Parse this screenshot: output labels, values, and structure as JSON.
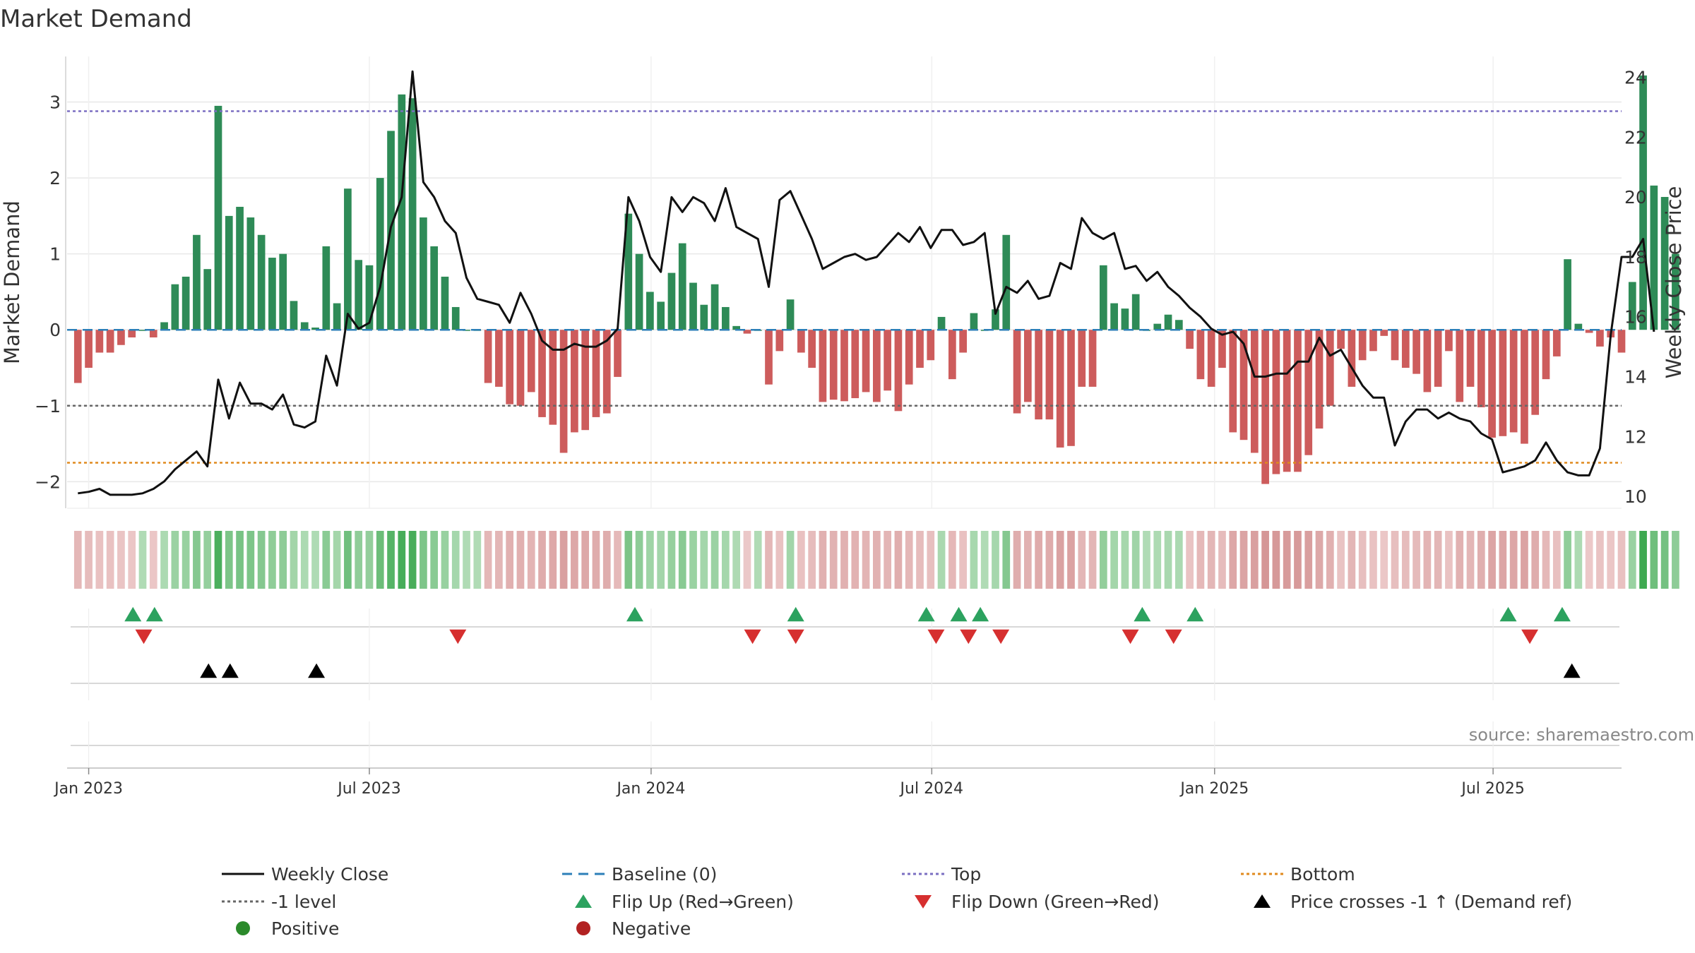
{
  "chart_data": {
    "type": "bar+line",
    "title": "Market Demand",
    "source": "source: sharemaestro.com",
    "left_axis": {
      "label": "Market Demand",
      "range": [
        -2.35,
        3.6
      ],
      "ticks": [
        -2,
        -1,
        0,
        1,
        2,
        3
      ],
      "tick_labels": [
        "−2",
        "−1",
        "0",
        "1",
        "2",
        "3"
      ]
    },
    "right_axis": {
      "label": "Weekly Close Price",
      "range": [
        9.6,
        24.7
      ],
      "ticks": [
        10,
        12,
        14,
        16,
        18,
        20,
        22,
        24
      ],
      "tick_labels": [
        "10",
        "12",
        "14",
        "16",
        "18",
        "20",
        "22",
        "24"
      ]
    },
    "x_axis": {
      "start_week": -1,
      "end_week": 143,
      "tick_weeks": [
        1,
        27,
        53.1,
        79.1,
        105.3,
        131.1
      ],
      "tick_labels": [
        "Jan 2023",
        "Jul 2023",
        "Jan 2024",
        "Jul 2024",
        "Jan 2025",
        "Jul 2025"
      ]
    },
    "reference_lines": {
      "baseline": 0,
      "top": 2.88,
      "minus_one_level": -1,
      "bottom": -1.75
    },
    "series": [
      {
        "name": "Market Demand",
        "kind": "bar",
        "values": [
          -0.7,
          -0.5,
          -0.3,
          -0.3,
          -0.2,
          -0.1,
          0.0,
          -0.1,
          0.1,
          0.6,
          0.7,
          1.25,
          0.8,
          2.95,
          1.5,
          1.62,
          1.48,
          1.25,
          0.95,
          1.0,
          0.38,
          0.1,
          0.03,
          1.1,
          0.35,
          1.86,
          0.92,
          0.85,
          2.0,
          2.62,
          3.1,
          3.05,
          1.48,
          1.1,
          0.7,
          0.3,
          0.0,
          0.0,
          -0.7,
          -0.75,
          -0.98,
          -1.0,
          -0.82,
          -1.15,
          -1.25,
          -1.62,
          -1.35,
          -1.32,
          -1.15,
          -1.1,
          -0.62,
          1.53,
          1.0,
          0.5,
          0.37,
          0.75,
          1.14,
          0.62,
          0.33,
          0.6,
          0.3,
          0.05,
          -0.05,
          0.0,
          -0.72,
          -0.28,
          0.4,
          -0.3,
          -0.5,
          -0.95,
          -0.92,
          -0.94,
          -0.9,
          -0.82,
          -0.95,
          -0.8,
          -1.07,
          -0.72,
          -0.5,
          -0.4,
          0.17,
          -0.65,
          -0.3,
          0.22,
          0.0,
          0.27,
          1.25,
          -1.1,
          -0.95,
          -1.18,
          -1.18,
          -1.55,
          -1.53,
          -0.75,
          -0.75,
          0.85,
          0.35,
          0.28,
          0.47,
          0.0,
          0.08,
          0.2,
          0.13,
          -0.25,
          -0.65,
          -0.75,
          -0.5,
          -1.35,
          -1.45,
          -1.62,
          -2.03,
          -1.9,
          -1.87,
          -1.87,
          -1.65,
          -1.3,
          -1.0,
          -0.25,
          -0.75,
          -0.4,
          -0.28,
          -0.08,
          -0.4,
          -0.5,
          -0.58,
          -0.82,
          -0.75,
          -0.28,
          -0.95,
          -0.75,
          -1.02,
          -1.42,
          -1.4,
          -1.35,
          -1.5,
          -1.12,
          -0.65,
          -0.35,
          0.93,
          0.08,
          -0.04,
          -0.22,
          -0.1,
          -0.3,
          0.63,
          3.35,
          1.9,
          1.75,
          1.0
        ]
      },
      {
        "name": "Weekly Close",
        "kind": "line",
        "values": [
          10.1,
          10.15,
          10.25,
          10.05,
          10.05,
          10.05,
          10.1,
          10.25,
          10.5,
          10.9,
          11.2,
          11.5,
          11.0,
          13.9,
          12.6,
          13.8,
          13.1,
          13.1,
          12.9,
          13.4,
          12.4,
          12.3,
          12.5,
          14.7,
          13.7,
          16.1,
          15.6,
          15.8,
          17.0,
          19.0,
          20.0,
          24.2,
          20.5,
          20.0,
          19.2,
          18.8,
          17.3,
          16.6,
          16.5,
          16.4,
          15.8,
          16.8,
          16.1,
          15.2,
          14.9,
          14.9,
          15.1,
          15.0,
          15.0,
          15.2,
          15.6,
          20.0,
          19.2,
          18.0,
          17.5,
          20.0,
          19.5,
          20.0,
          19.8,
          19.2,
          20.3,
          19.0,
          18.8,
          18.6,
          17.0,
          19.9,
          20.2,
          19.4,
          18.6,
          17.6,
          17.8,
          18.0,
          18.1,
          17.9,
          18.0,
          18.4,
          18.8,
          18.5,
          19.0,
          18.3,
          18.9,
          18.9,
          18.4,
          18.5,
          18.8,
          16.1,
          17.0,
          16.8,
          17.2,
          16.6,
          16.7,
          17.8,
          17.6,
          19.3,
          18.8,
          18.6,
          18.8,
          17.6,
          17.7,
          17.2,
          17.5,
          17.0,
          16.7,
          16.3,
          16.0,
          15.6,
          15.4,
          15.5,
          15.1,
          14.0,
          14.0,
          14.1,
          14.1,
          14.5,
          14.5,
          15.3,
          14.7,
          14.9,
          14.3,
          13.7,
          13.3,
          13.3,
          11.7,
          12.5,
          12.9,
          12.9,
          12.6,
          12.8,
          12.6,
          12.5,
          12.1,
          11.9,
          10.8,
          10.9,
          11.0,
          11.2,
          11.8,
          11.2,
          10.8,
          10.7,
          10.7,
          11.6,
          15.4,
          18.0,
          18.0,
          18.6,
          15.5
        ]
      }
    ],
    "flip_up_weeks": [
      5.1,
      7.1,
      51.6,
      66.5,
      78.6,
      81.6,
      83.6,
      98.6,
      103.5,
      132.5,
      137.5
    ],
    "flip_down_weeks": [
      6.1,
      35.2,
      62.5,
      66.5,
      79.5,
      82.5,
      85.5,
      97.5,
      101.5,
      134.5
    ],
    "price_cross_weeks": [
      12.1,
      14.1,
      22.1,
      138.4
    ],
    "legend": [
      {
        "label": "Weekly Close",
        "symbol": "solid-line",
        "color": "#111111"
      },
      {
        "label": "Baseline (0)",
        "symbol": "dash-line",
        "color": "#2c7fb8"
      },
      {
        "label": "Top",
        "symbol": "dot-line",
        "color": "#7b6fc2"
      },
      {
        "label": "Bottom",
        "symbol": "dot-line",
        "color": "#e08a1e"
      },
      {
        "label": "-1 level",
        "symbol": "dot-line",
        "color": "#666666"
      },
      {
        "label": "Flip Up (Red→Green)",
        "symbol": "triangle-up",
        "color": "#2ca25f"
      },
      {
        "label": "Flip Down (Green→Red)",
        "symbol": "triangle-down",
        "color": "#d62f2f"
      },
      {
        "label": "Price crosses -1 ↑ (Demand ref)",
        "symbol": "triangle-up",
        "color": "#000000"
      },
      {
        "label": "Positive",
        "symbol": "dot",
        "color": "#2b8a2b"
      },
      {
        "label": "Negative",
        "symbol": "dot",
        "color": "#b22222"
      }
    ],
    "colors": {
      "positive_bar": "#2e8b57",
      "negative_bar": "#cd5c5c",
      "price_line": "#111111",
      "grid": "#e8e8e8"
    }
  }
}
